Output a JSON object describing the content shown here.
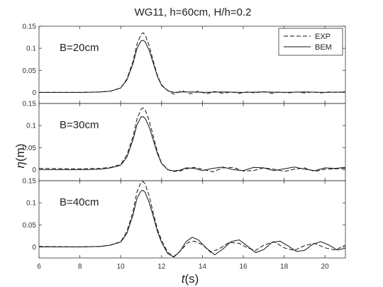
{
  "chart_data": {
    "type": "line",
    "title": "WG11, h=60cm, H/h=0.2",
    "xlabel_var": "t",
    "xlabel_unit": "(s)",
    "ylabel_var": "η",
    "ylabel_unit": "(m)",
    "xlim": [
      6,
      21
    ],
    "xticks": [
      "6",
      "8",
      "10",
      "12",
      "14",
      "16",
      "18",
      "20"
    ],
    "ylim": [
      -0.025,
      0.15
    ],
    "yticks": [
      "0",
      "0.05",
      "0.1",
      "0.15"
    ],
    "legend": {
      "placement": "top-right",
      "entries": [
        "EXP",
        "BEM"
      ]
    },
    "panels": [
      {
        "label": "B=20cm",
        "series": [
          {
            "name": "EXP",
            "style": "dashed",
            "x": [
              6,
              8,
              9,
              9.5,
              10,
              10.3,
              10.6,
              10.8,
              11.0,
              11.1,
              11.2,
              11.4,
              11.6,
              11.8,
              12.0,
              12.3,
              12.6,
              13.0,
              13.4,
              13.8,
              14.2,
              14.6,
              15.0,
              15.4,
              15.8,
              16.2,
              16.6,
              17.0,
              17.4,
              17.8,
              18.2,
              18.6,
              19.0,
              19.4,
              19.8,
              20.2,
              20.6,
              21
            ],
            "y": [
              0,
              0,
              0.001,
              0.003,
              0.01,
              0.03,
              0.07,
              0.11,
              0.132,
              0.135,
              0.13,
              0.105,
              0.07,
              0.038,
              0.017,
              0.004,
              -0.004,
              0.004,
              -0.003,
              0.003,
              -0.003,
              0.002,
              -0.002,
              0.001,
              -0.002,
              0.001,
              -0.001,
              0.002,
              -0.002,
              0.001,
              -0.001,
              0.001,
              -0.001,
              0.001,
              -0.001,
              0.001,
              0,
              0.001
            ]
          },
          {
            "name": "BEM",
            "style": "solid",
            "x": [
              6,
              8,
              9,
              9.5,
              10,
              10.3,
              10.6,
              10.8,
              11.0,
              11.1,
              11.2,
              11.4,
              11.6,
              11.8,
              12.0,
              12.3,
              12.6,
              13.0,
              13.5,
              14.0,
              15.0,
              16.0,
              17.0,
              18.0,
              19.0,
              20.0,
              21
            ],
            "y": [
              0,
              0,
              0.001,
              0.003,
              0.01,
              0.028,
              0.065,
              0.1,
              0.117,
              0.118,
              0.114,
              0.095,
              0.065,
              0.036,
              0.016,
              0.004,
              0,
              0.001,
              0.001,
              0,
              0.001,
              0,
              0.001,
              0,
              0.001,
              0,
              0.001
            ]
          }
        ]
      },
      {
        "label": "B=30cm",
        "series": [
          {
            "name": "EXP",
            "style": "dashed",
            "x": [
              6,
              8,
              9,
              9.5,
              10,
              10.3,
              10.6,
              10.8,
              11.0,
              11.1,
              11.2,
              11.4,
              11.6,
              11.8,
              12.0,
              12.3,
              12.6,
              12.9,
              13.2,
              13.6,
              14.0,
              14.5,
              15.0,
              15.5,
              16.0,
              16.5,
              17.0,
              17.5,
              18.0,
              18.5,
              19.0,
              19.5,
              20.0,
              20.5,
              21
            ],
            "y": [
              0.003,
              0.002,
              0.003,
              0.005,
              0.012,
              0.033,
              0.075,
              0.115,
              0.137,
              0.14,
              0.135,
              0.11,
              0.075,
              0.04,
              0.015,
              0,
              -0.004,
              -0.003,
              0.002,
              0.005,
              0.001,
              -0.005,
              0.004,
              0.005,
              -0.003,
              -0.002,
              0.004,
              0.001,
              -0.004,
              0.001,
              0.004,
              -0.004,
              0.001,
              0.002,
              0.003
            ]
          },
          {
            "name": "BEM",
            "style": "solid",
            "x": [
              6,
              8,
              9,
              9.5,
              10,
              10.3,
              10.6,
              10.8,
              11.0,
              11.1,
              11.2,
              11.4,
              11.6,
              11.8,
              12.0,
              12.3,
              12.6,
              12.9,
              13.2,
              13.6,
              14.0,
              14.5,
              15.0,
              15.5,
              16.0,
              16.5,
              17.0,
              17.5,
              18.0,
              18.5,
              19.0,
              19.5,
              20.0,
              20.5,
              21
            ],
            "y": [
              0,
              0,
              0.001,
              0.004,
              0.01,
              0.028,
              0.068,
              0.102,
              0.12,
              0.12,
              0.116,
              0.096,
              0.066,
              0.036,
              0.014,
              0,
              -0.003,
              -0.001,
              0.004,
              0.003,
              -0.002,
              0.003,
              0.006,
              0,
              -0.002,
              0.005,
              0.004,
              -0.002,
              0.002,
              0.006,
              0.001,
              -0.002,
              0.004,
              0.003,
              0.005
            ]
          }
        ]
      },
      {
        "label": "B=40cm",
        "series": [
          {
            "name": "EXP",
            "style": "dashed",
            "x": [
              6,
              8,
              9,
              9.5,
              10,
              10.3,
              10.6,
              10.8,
              11.0,
              11.1,
              11.2,
              11.4,
              11.6,
              11.8,
              12.0,
              12.3,
              12.6,
              12.9,
              13.3,
              13.6,
              14.0,
              14.4,
              14.8,
              15.3,
              15.8,
              16.2,
              16.6,
              17.0,
              17.5,
              18.0,
              18.5,
              19.0,
              19.5,
              20.0,
              20.5,
              21
            ],
            "y": [
              0.001,
              0,
              0.001,
              0.004,
              0.012,
              0.035,
              0.08,
              0.125,
              0.147,
              0.148,
              0.142,
              0.115,
              0.075,
              0.04,
              0.015,
              -0.012,
              -0.022,
              -0.01,
              0.01,
              0.013,
              0.005,
              -0.012,
              -0.005,
              0.01,
              0.008,
              -0.002,
              -0.008,
              0.004,
              0.012,
              -0.002,
              -0.008,
              0.003,
              0.008,
              -0.002,
              -0.007,
              0.004
            ]
          },
          {
            "name": "BEM",
            "style": "solid",
            "x": [
              6,
              8,
              9,
              9.5,
              10,
              10.3,
              10.6,
              10.8,
              11.0,
              11.1,
              11.2,
              11.4,
              11.6,
              11.8,
              12.0,
              12.3,
              12.6,
              12.9,
              13.2,
              13.5,
              13.8,
              14.2,
              14.6,
              15.0,
              15.4,
              15.8,
              16.2,
              16.6,
              17.0,
              17.4,
              17.8,
              18.2,
              18.6,
              19.0,
              19.4,
              19.8,
              20.2,
              20.6,
              21
            ],
            "y": [
              0,
              0,
              0.001,
              0.004,
              0.011,
              0.03,
              0.072,
              0.11,
              0.127,
              0.128,
              0.123,
              0.1,
              0.068,
              0.035,
              0.01,
              -0.015,
              -0.023,
              -0.01,
              0.012,
              0.022,
              0.016,
              -0.003,
              -0.018,
              -0.005,
              0.012,
              0.016,
              0.002,
              -0.013,
              -0.006,
              0.01,
              0.013,
              0.002,
              -0.01,
              -0.008,
              0.006,
              0.012,
              0.004,
              -0.007,
              -0.003
            ]
          }
        ]
      }
    ]
  }
}
